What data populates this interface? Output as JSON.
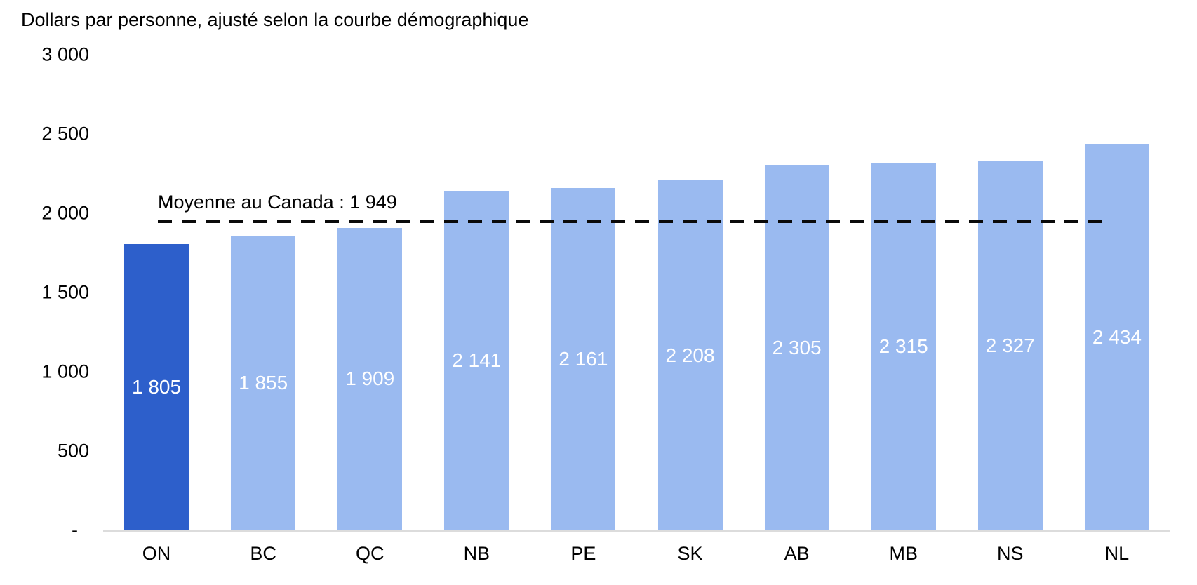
{
  "chart_data": {
    "type": "bar",
    "title": "Dollars par personne, ajusté selon la courbe démographique",
    "categories": [
      "ON",
      "BC",
      "QC",
      "NB",
      "PE",
      "SK",
      "AB",
      "MB",
      "NS",
      "NL"
    ],
    "values": [
      1805,
      1855,
      1909,
      2141,
      2161,
      2208,
      2305,
      2315,
      2327,
      2434
    ],
    "value_labels": [
      "1 805",
      "1 855",
      "1 909",
      "2 141",
      "2 161",
      "2 208",
      "2 305",
      "2 315",
      "2 327",
      "2 434"
    ],
    "highlight_category": "ON",
    "average_line": {
      "value": 1949,
      "label": "Moyenne au Canada : 1 949"
    },
    "yticks": [
      {
        "value": 3000,
        "label": "3 000"
      },
      {
        "value": 2500,
        "label": "2 500"
      },
      {
        "value": 2000,
        "label": "2 000"
      },
      {
        "value": 1500,
        "label": "1 500"
      },
      {
        "value": 1000,
        "label": "1 000"
      },
      {
        "value": 500,
        "label": "500"
      },
      {
        "value": 0,
        "label": "-"
      }
    ],
    "ylim": [
      0,
      3000
    ],
    "xlabel": "",
    "ylabel": "",
    "grid": false,
    "legend_position": "none",
    "colors": {
      "highlight": "#2d5fcb",
      "normal": "#9abaf0",
      "average_line": "#0a0a0a",
      "axis_line": "#dcdcdc",
      "value_label": "#ffffff",
      "text": "#000000"
    }
  }
}
